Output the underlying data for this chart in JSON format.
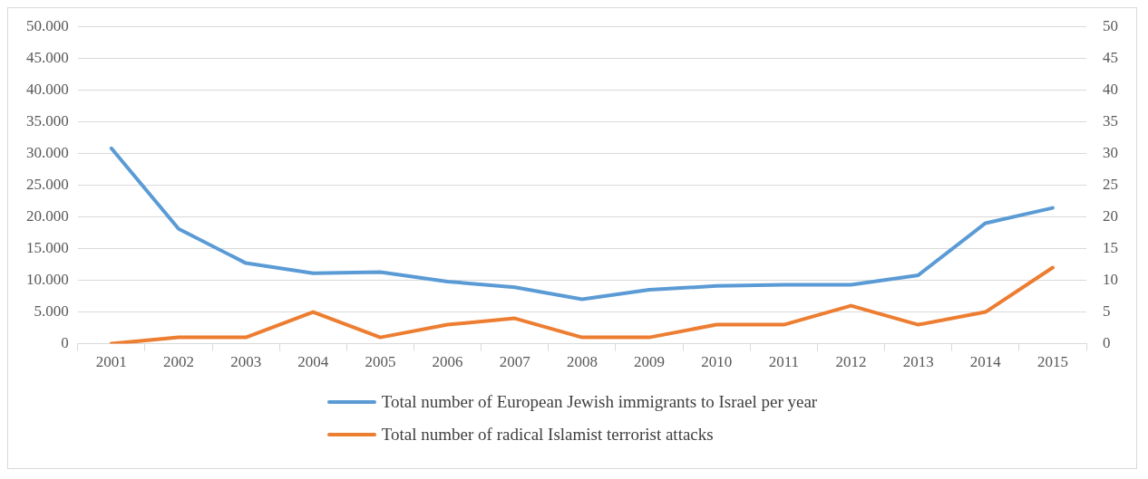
{
  "chart_data": {
    "type": "line",
    "categories": [
      "2001",
      "2002",
      "2003",
      "2004",
      "2005",
      "2006",
      "2007",
      "2008",
      "2009",
      "2010",
      "2011",
      "2012",
      "2013",
      "2014",
      "2015"
    ],
    "series": [
      {
        "name": "Total number of European Jewish immigrants to Israel per year",
        "color": "#5b9bd5",
        "values": [
          30800,
          18100,
          12700,
          11100,
          11300,
          9800,
          8900,
          7000,
          8500,
          9100,
          9300,
          9300,
          10800,
          19000,
          21400
        ]
      },
      {
        "name": "Total number of radical Islamist terrorist attacks",
        "color": "#ed7d31",
        "axis": "y2",
        "values": [
          0,
          1,
          1,
          5,
          1,
          3,
          4,
          1,
          1,
          3,
          3,
          6,
          3,
          5,
          12
        ]
      }
    ],
    "ylim": [
      0,
      50000
    ],
    "yticks": [
      0,
      {
        "value": 5000,
        "label": "5.000"
      },
      {
        "value": 10000,
        "label": "10.000"
      },
      {
        "value": 15000,
        "label": "15.000"
      },
      {
        "value": 20000,
        "label": "20.000"
      },
      {
        "value": 25000,
        "label": "25.000"
      },
      {
        "value": 30000,
        "label": "30.000"
      },
      {
        "value": 35000,
        "label": "35.000"
      },
      {
        "value": 40000,
        "label": "40.000"
      },
      {
        "value": 45000,
        "label": "45.000"
      },
      {
        "value": 50000,
        "label": "50.000"
      }
    ],
    "y2lim": [
      0,
      50
    ],
    "y2ticks": [
      0,
      5,
      10,
      15,
      20,
      25,
      30,
      35,
      40,
      45,
      50
    ],
    "grid": "y",
    "legend": "bottom",
    "marker": "none",
    "line_style": "solid"
  }
}
